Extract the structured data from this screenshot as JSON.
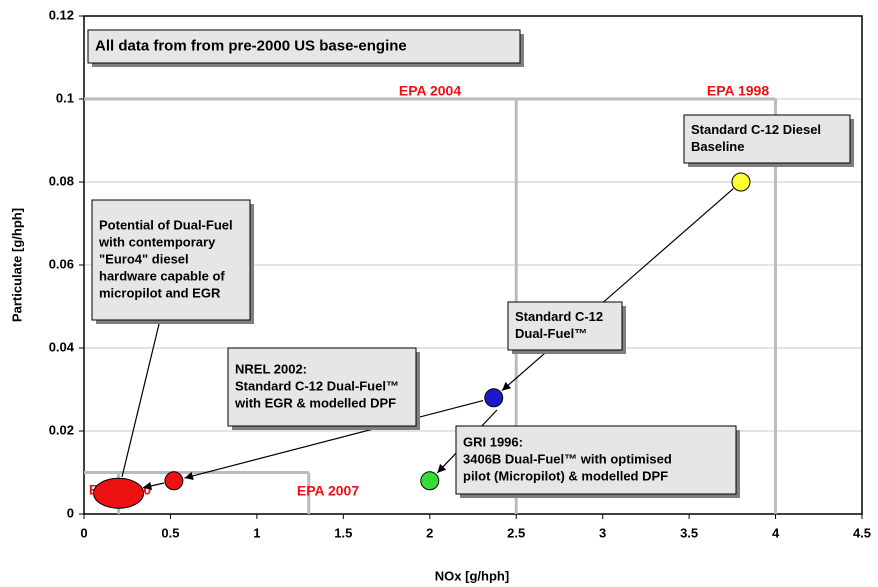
{
  "chart_data": {
    "type": "scatter",
    "xlabel": "NOx [g/hph]",
    "ylabel": "Particulate [g/hph]",
    "xlim": [
      0,
      4.5
    ],
    "ylim": [
      0,
      0.12
    ],
    "xticks": [
      0,
      0.5,
      1,
      1.5,
      2,
      2.5,
      3,
      3.5,
      4,
      4.5
    ],
    "yticks": [
      0,
      0.02,
      0.04,
      0.06,
      0.08,
      0.1,
      0.12
    ],
    "grid": true,
    "points": [
      {
        "x": 3.8,
        "y": 0.08,
        "color": "#ffff33"
      },
      {
        "x": 2.37,
        "y": 0.028,
        "color": "#1a1acc"
      },
      {
        "x": 2.0,
        "y": 0.008,
        "color": "#33dd33"
      },
      {
        "x": 0.52,
        "y": 0.008,
        "color": "#ee1111"
      },
      {
        "x": 0.2,
        "y": 0.005,
        "color": "#ee1111",
        "shape": "ellipse"
      }
    ],
    "limits": [
      {
        "label": "EPA 1998",
        "nox": 4,
        "pm": 0.1
      },
      {
        "label": "EPA 2004",
        "nox": 2.5,
        "pm": 0.1
      },
      {
        "label": "EPA 2007",
        "nox": 1.3,
        "pm": 0.01
      },
      {
        "label": "EPA 2010",
        "nox": 0.2,
        "pm": 0.01
      }
    ],
    "annotations": [
      {
        "lines": [
          "All data from from pre-2000 US base-engine"
        ]
      },
      {
        "lines": [
          "Standard C-12 Diesel",
          "Baseline"
        ]
      },
      {
        "lines": [
          "Potential of Dual-Fuel",
          "with contemporary",
          "\"Euro4\" diesel",
          "hardware capable of",
          "micropilot and EGR"
        ]
      },
      {
        "lines": [
          "Standard C-12",
          "Dual-Fuel™"
        ]
      },
      {
        "lines": [
          "NREL 2002:",
          "Standard C-12 Dual-Fuel™",
          "with EGR & modelled DPF"
        ]
      },
      {
        "lines": [
          "GRI 1996:",
          "3406B Dual-Fuel™ with optimised",
          "pilot (Micropilot) & modelled DPF"
        ]
      }
    ]
  }
}
